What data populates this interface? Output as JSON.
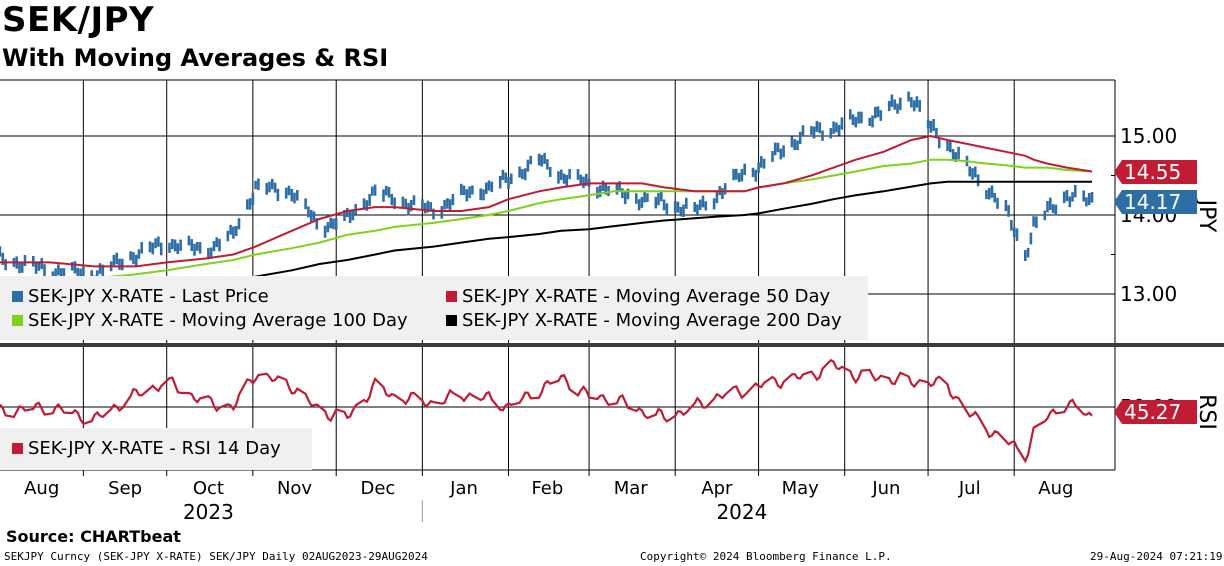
{
  "header": {
    "title": "SEK/JPY",
    "subtitle": "With Moving Averages & RSI"
  },
  "legend_top": [
    {
      "label": "SEK-JPY X-RATE - Last Price",
      "color": "#2e6ea6"
    },
    {
      "label": "SEK-JPY X-RATE - Moving Average 50 Day",
      "color": "#c01c33"
    },
    {
      "label": "SEK-JPY X-RATE - Moving Average 100 Day",
      "color": "#7fd11b"
    },
    {
      "label": "SEK-JPY X-RATE - Moving Average 200 Day",
      "color": "#000000"
    }
  ],
  "legend_bottom": [
    {
      "label": "SEK-JPY X-RATE - RSI 14 Day",
      "color": "#c01c33"
    }
  ],
  "axis_labels": {
    "price_axis": "JPY",
    "rsi_axis": "RSI"
  },
  "price_ticks": [
    "15.00",
    "14.00",
    "13.00"
  ],
  "rsi_tick": "50.00",
  "tags": {
    "ma50": "14.55",
    "last": "14.17",
    "rsi": "45.27"
  },
  "months": [
    "Aug",
    "Sep",
    "Oct",
    "Nov",
    "Dec",
    "Jan",
    "Feb",
    "Mar",
    "Apr",
    "May",
    "Jun",
    "Jul",
    "Aug"
  ],
  "years": [
    "2023",
    "2024"
  ],
  "footer": {
    "source": "Source: CHARTbeat",
    "left": "SEKJPY Curncy (SEK-JPY X-RATE) SEK/JPY  Daily 02AUG2023-29AUG2024",
    "center": "Copyright© 2024 Bloomberg Finance L.P.",
    "right": "29-Aug-2024 07:21:19"
  },
  "colors": {
    "price": "#2e6ea6",
    "ma50": "#c01c33",
    "ma100": "#7fd11b",
    "ma200": "#000000",
    "rsi": "#c01c33",
    "legend_bg": "#f0f0f0"
  },
  "chart_data": [
    {
      "type": "line",
      "title": "SEK/JPY",
      "subtitle": "With Moving Averages & RSI",
      "ylabel": "JPY",
      "ylim": [
        12.5,
        15.6
      ],
      "y_ticks": [
        13.0,
        14.0,
        15.0
      ],
      "x_range": [
        "2023-08-02",
        "2024-08-29"
      ],
      "grid": true,
      "legend_position": "bottom-left",
      "x_anchor_dates": [
        "2023-08-02",
        "2023-08-20",
        "2023-09-05",
        "2023-09-20",
        "2023-10-01",
        "2023-10-15",
        "2023-10-25",
        "2023-11-02",
        "2023-11-15",
        "2023-11-25",
        "2023-12-05",
        "2023-12-15",
        "2023-12-22",
        "2024-01-05",
        "2024-01-15",
        "2024-01-25",
        "2024-02-01",
        "2024-02-12",
        "2024-02-20",
        "2024-03-01",
        "2024-03-10",
        "2024-03-20",
        "2024-03-28",
        "2024-04-08",
        "2024-04-16",
        "2024-04-26",
        "2024-05-01",
        "2024-05-10",
        "2024-05-20",
        "2024-05-28",
        "2024-06-05",
        "2024-06-15",
        "2024-06-25",
        "2024-07-02",
        "2024-07-08",
        "2024-07-15",
        "2024-07-22",
        "2024-07-29",
        "2024-08-05",
        "2024-08-08",
        "2024-08-13",
        "2024-08-20",
        "2024-08-29"
      ],
      "series": [
        {
          "name": "SEK-JPY X-RATE - Last Price",
          "values": [
            13.45,
            13.3,
            13.25,
            13.5,
            13.65,
            13.55,
            13.75,
            14.35,
            14.3,
            13.85,
            13.95,
            14.3,
            14.2,
            14.05,
            14.25,
            14.35,
            14.45,
            14.7,
            14.5,
            14.4,
            14.3,
            14.2,
            14.15,
            14.05,
            14.25,
            14.55,
            14.6,
            14.85,
            15.05,
            15.1,
            15.2,
            15.3,
            15.5,
            15.1,
            14.9,
            14.6,
            14.35,
            14.05,
            13.5,
            13.85,
            14.05,
            14.25,
            14.17
          ]
        },
        {
          "name": "SEK-JPY X-RATE - Moving Average 50 Day",
          "values": [
            13.4,
            13.4,
            13.35,
            13.35,
            13.4,
            13.45,
            13.5,
            13.6,
            13.8,
            13.95,
            14.05,
            14.1,
            14.1,
            14.05,
            14.05,
            14.1,
            14.2,
            14.3,
            14.35,
            14.4,
            14.4,
            14.4,
            14.35,
            14.3,
            14.3,
            14.3,
            14.35,
            14.4,
            14.5,
            14.6,
            14.7,
            14.8,
            14.95,
            15.0,
            14.95,
            14.9,
            14.85,
            14.8,
            14.75,
            14.7,
            14.65,
            14.6,
            14.55
          ]
        },
        {
          "name": "SEK-JPY X-RATE - Moving Average 100 Day",
          "values": [
            null,
            13.2,
            13.2,
            13.25,
            13.3,
            13.38,
            13.43,
            13.5,
            13.58,
            13.65,
            13.75,
            13.8,
            13.85,
            13.9,
            13.95,
            14.0,
            14.05,
            14.15,
            14.2,
            14.25,
            14.3,
            14.3,
            14.3,
            14.3,
            14.3,
            14.3,
            14.35,
            14.4,
            14.45,
            14.5,
            14.55,
            14.62,
            14.65,
            14.7,
            14.7,
            14.68,
            14.65,
            14.63,
            14.6,
            14.6,
            14.6,
            14.57,
            14.55
          ]
        },
        {
          "name": "SEK-JPY X-RATE - Moving Average 200 Day",
          "values": [
            null,
            null,
            null,
            null,
            null,
            null,
            13.15,
            13.22,
            13.3,
            13.38,
            13.43,
            13.5,
            13.55,
            13.6,
            13.65,
            13.7,
            13.72,
            13.76,
            13.8,
            13.82,
            13.86,
            13.9,
            13.93,
            13.96,
            13.98,
            14.0,
            14.02,
            14.08,
            14.14,
            14.2,
            14.25,
            14.3,
            14.36,
            14.4,
            14.42,
            14.42,
            14.42,
            14.42,
            14.42,
            14.42,
            14.42,
            14.42,
            14.42
          ]
        }
      ]
    },
    {
      "type": "line",
      "ylabel": "RSI",
      "ylim": [
        20,
        80
      ],
      "y_ticks": [
        50
      ],
      "x_range": [
        "2023-08-02",
        "2024-08-29"
      ],
      "legend_position": "bottom-left",
      "x_anchor_dates": [
        "2023-08-02",
        "2023-08-20",
        "2023-09-05",
        "2023-09-20",
        "2023-10-01",
        "2023-10-15",
        "2023-10-25",
        "2023-11-02",
        "2023-11-15",
        "2023-11-25",
        "2023-12-05",
        "2023-12-15",
        "2023-12-22",
        "2024-01-05",
        "2024-01-15",
        "2024-01-25",
        "2024-02-01",
        "2024-02-12",
        "2024-02-20",
        "2024-03-01",
        "2024-03-10",
        "2024-03-20",
        "2024-03-28",
        "2024-04-08",
        "2024-04-16",
        "2024-04-26",
        "2024-05-01",
        "2024-05-10",
        "2024-05-20",
        "2024-05-28",
        "2024-06-05",
        "2024-06-15",
        "2024-06-25",
        "2024-07-02",
        "2024-07-08",
        "2024-07-15",
        "2024-07-22",
        "2024-07-29",
        "2024-08-05",
        "2024-08-08",
        "2024-08-13",
        "2024-08-20",
        "2024-08-29"
      ],
      "series": [
        {
          "name": "SEK-JPY X-RATE - RSI 14 Day",
          "values": [
            48,
            50,
            44,
            56,
            62,
            52,
            50,
            66,
            60,
            48,
            45,
            60,
            55,
            52,
            56,
            54,
            50,
            58,
            64,
            55,
            54,
            48,
            45,
            50,
            55,
            58,
            60,
            63,
            65,
            70,
            65,
            64,
            62,
            62,
            60,
            48,
            40,
            34,
            27,
            38,
            45,
            52,
            45.27
          ]
        }
      ]
    }
  ]
}
